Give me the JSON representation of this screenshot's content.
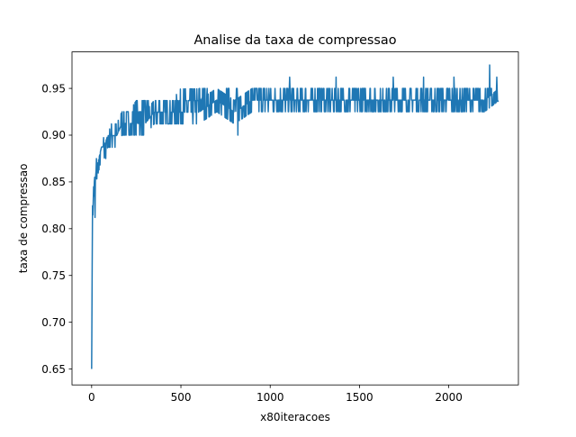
{
  "chart_data": {
    "type": "line",
    "title": "Analise da taxa de compressao",
    "xlabel": "x80iteracoes",
    "ylabel": "taxa de compressao",
    "xlim": [
      -110,
      2390
    ],
    "ylim": [
      0.633,
      0.989
    ],
    "xticks": [
      {
        "value": 0,
        "label": "0"
      },
      {
        "value": 500,
        "label": "500"
      },
      {
        "value": 1000,
        "label": "1000"
      },
      {
        "value": 1500,
        "label": "1500"
      },
      {
        "value": 2000,
        "label": "2000"
      }
    ],
    "yticks": [
      {
        "value": 0.65,
        "label": "0.65"
      },
      {
        "value": 0.7,
        "label": "0.70"
      },
      {
        "value": 0.75,
        "label": "0.75"
      },
      {
        "value": 0.8,
        "label": "0.80"
      },
      {
        "value": 0.85,
        "label": "0.85"
      },
      {
        "value": 0.9,
        "label": "0.90"
      },
      {
        "value": 0.95,
        "label": "0.95"
      }
    ],
    "grid": false,
    "legend": "none",
    "series": [
      {
        "color": "#1f77b4",
        "envelope_points": [
          {
            "x": 0,
            "low": 0.65,
            "high": 0.65
          },
          {
            "x": 5,
            "low": 0.812,
            "high": 0.838
          },
          {
            "x": 15,
            "low": 0.825,
            "high": 0.862
          },
          {
            "x": 25,
            "low": 0.85,
            "high": 0.875
          },
          {
            "x": 40,
            "low": 0.862,
            "high": 0.875
          },
          {
            "x": 55,
            "low": 0.875,
            "high": 0.887
          },
          {
            "x": 70,
            "low": 0.875,
            "high": 0.9
          },
          {
            "x": 90,
            "low": 0.887,
            "high": 0.9
          },
          {
            "x": 110,
            "low": 0.887,
            "high": 0.912
          },
          {
            "x": 140,
            "low": 0.887,
            "high": 0.912
          },
          {
            "x": 170,
            "low": 0.9,
            "high": 0.925
          },
          {
            "x": 210,
            "low": 0.9,
            "high": 0.925
          },
          {
            "x": 250,
            "low": 0.9,
            "high": 0.937
          },
          {
            "x": 300,
            "low": 0.9,
            "high": 0.937
          },
          {
            "x": 350,
            "low": 0.912,
            "high": 0.937
          },
          {
            "x": 400,
            "low": 0.912,
            "high": 0.937
          },
          {
            "x": 450,
            "low": 0.912,
            "high": 0.937
          },
          {
            "x": 500,
            "low": 0.912,
            "high": 0.95
          },
          {
            "x": 600,
            "low": 0.912,
            "high": 0.95
          },
          {
            "x": 700,
            "low": 0.925,
            "high": 0.95
          },
          {
            "x": 800,
            "low": 0.912,
            "high": 0.95
          },
          {
            "x": 900,
            "low": 0.925,
            "high": 0.95
          },
          {
            "x": 1000,
            "low": 0.925,
            "high": 0.95
          },
          {
            "x": 1100,
            "low": 0.925,
            "high": 0.95
          },
          {
            "x": 1200,
            "low": 0.925,
            "high": 0.95
          },
          {
            "x": 1300,
            "low": 0.925,
            "high": 0.95
          },
          {
            "x": 1400,
            "low": 0.925,
            "high": 0.95
          },
          {
            "x": 1500,
            "low": 0.925,
            "high": 0.95
          },
          {
            "x": 1600,
            "low": 0.925,
            "high": 0.95
          },
          {
            "x": 1700,
            "low": 0.925,
            "high": 0.95
          },
          {
            "x": 1800,
            "low": 0.925,
            "high": 0.95
          },
          {
            "x": 1900,
            "low": 0.925,
            "high": 0.95
          },
          {
            "x": 2000,
            "low": 0.925,
            "high": 0.95
          },
          {
            "x": 2100,
            "low": 0.925,
            "high": 0.95
          },
          {
            "x": 2200,
            "low": 0.925,
            "high": 0.95
          },
          {
            "x": 2280,
            "low": 0.937,
            "high": 0.95
          }
        ],
        "outliers": [
          {
            "x": 20,
            "y": 0.812
          },
          {
            "x": 80,
            "y": 0.875
          },
          {
            "x": 820,
            "y": 0.9
          },
          {
            "x": 1110,
            "y": 0.962
          },
          {
            "x": 1370,
            "y": 0.962
          },
          {
            "x": 1690,
            "y": 0.962
          },
          {
            "x": 1860,
            "y": 0.962
          },
          {
            "x": 2030,
            "y": 0.962
          },
          {
            "x": 2230,
            "y": 0.975
          },
          {
            "x": 2270,
            "y": 0.962
          }
        ]
      }
    ]
  }
}
